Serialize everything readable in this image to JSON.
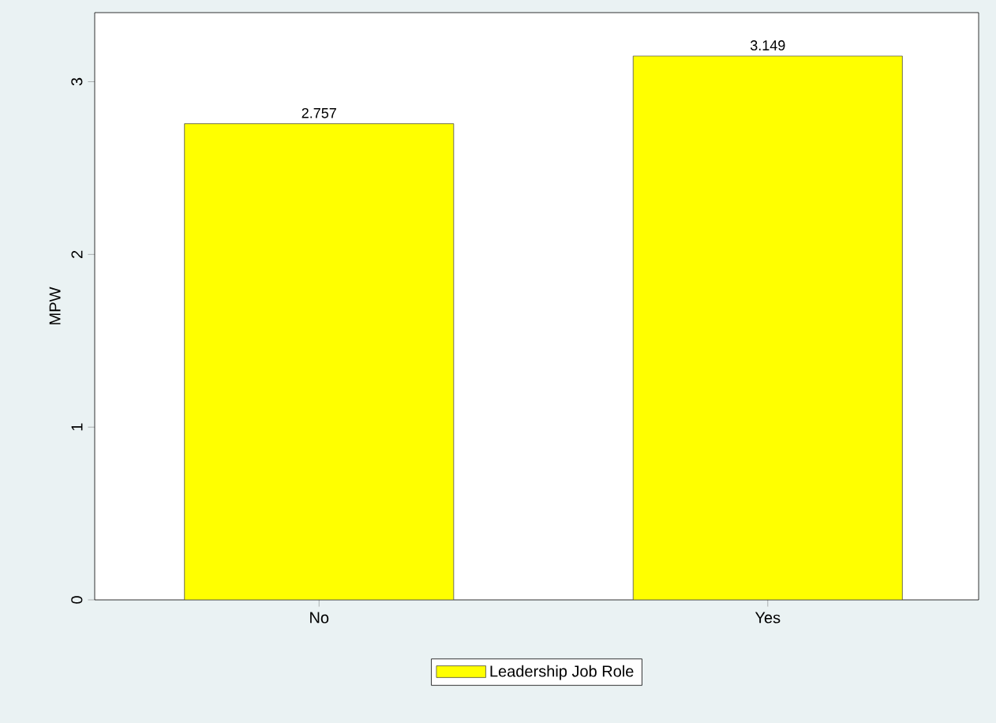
{
  "chart_data": {
    "type": "bar",
    "ylabel": "MPW",
    "categories": [
      "No",
      "Yes"
    ],
    "series": [
      {
        "name": "Leadership Job Role",
        "color": "#ffff00",
        "values": [
          2.757,
          3.149
        ]
      }
    ],
    "ylim": [
      0,
      3.4
    ],
    "yticks": [
      0,
      1,
      2,
      3
    ],
    "data_labels": true,
    "grid": false,
    "legend": "bottom"
  }
}
